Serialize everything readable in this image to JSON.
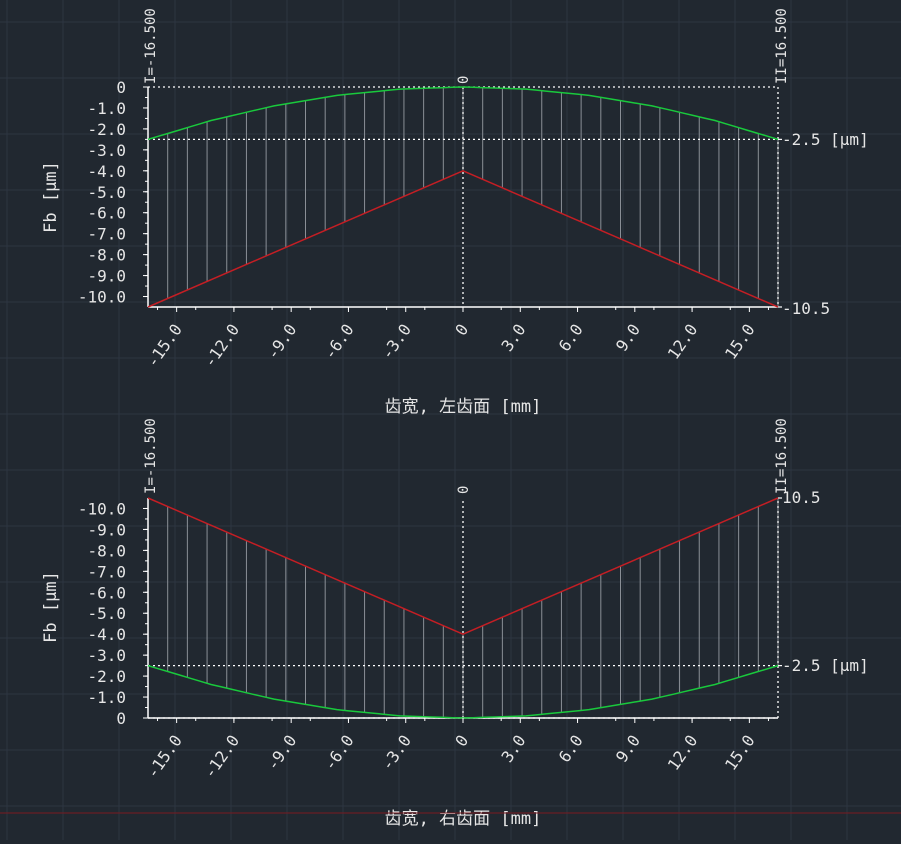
{
  "colors": {
    "background": "#212830",
    "grid": "#2d3641",
    "axis": "#ffffff",
    "hatch": "#8a8f96",
    "upper_curve": "#19c93c",
    "lower_curve": "#c41e24",
    "bottom_rule": "#7a1a1f"
  },
  "chart_data": [
    {
      "type": "line",
      "xlabel": "齿宽, 左齿面 [mm]",
      "ylabel": "Fb [μm]",
      "xlim": [
        -16.5,
        16.5
      ],
      "ylim": [
        -10.5,
        0
      ],
      "y_direction": "down-negative",
      "x_ticks": [
        "-15.0",
        "-12.0",
        "-9.0",
        "-6.0",
        "-3.0",
        "0",
        "3.0",
        "6.0",
        "9.0",
        "12.0",
        "15.0"
      ],
      "y_ticks": [
        "0",
        "-1.0",
        "-2.0",
        "-3.0",
        "-4.0",
        "-5.0",
        "-6.0",
        "-7.0",
        "-8.0",
        "-9.0",
        "-10.0"
      ],
      "markers": {
        "left": "I=-16.500",
        "center": "0",
        "right": "II=16.500"
      },
      "limit_labels": {
        "upper": "-2.5 [μm]",
        "lower": "-10.5"
      },
      "series": [
        {
          "x": [
            -16.5,
            -13.2,
            -9.9,
            -6.6,
            -3.3,
            0,
            3.3,
            6.6,
            9.9,
            13.2,
            16.5
          ],
          "values": [
            -2.5,
            -1.6,
            -0.9,
            -0.4,
            -0.1,
            0,
            -0.1,
            -0.4,
            -0.9,
            -1.6,
            -2.5
          ]
        },
        {
          "x": [
            -16.5,
            0,
            16.5
          ],
          "values": [
            -10.5,
            -4.0,
            -10.5
          ]
        }
      ]
    },
    {
      "type": "line",
      "xlabel": "齿宽, 右齿面 [mm]",
      "ylabel": "Fb [μm]",
      "xlim": [
        -16.5,
        16.5
      ],
      "ylim": [
        -10.5,
        0
      ],
      "y_direction": "up-negative",
      "x_ticks": [
        "-15.0",
        "-12.0",
        "-9.0",
        "-6.0",
        "-3.0",
        "0",
        "3.0",
        "6.0",
        "9.0",
        "12.0",
        "15.0"
      ],
      "y_ticks": [
        "0",
        "-1.0",
        "-2.0",
        "-3.0",
        "-4.0",
        "-5.0",
        "-6.0",
        "-7.0",
        "-8.0",
        "-9.0",
        "-10.0"
      ],
      "markers": {
        "left": "I=-16.500",
        "center": "0",
        "right": "II=16.500"
      },
      "limit_labels": {
        "upper": "10.5",
        "lower": "-2.5 [μm]"
      },
      "series": [
        {
          "x": [
            -16.5,
            -13.2,
            -9.9,
            -6.6,
            -3.3,
            0,
            3.3,
            6.6,
            9.9,
            13.2,
            16.5
          ],
          "values": [
            -2.5,
            -1.6,
            -0.9,
            -0.4,
            -0.1,
            0,
            -0.1,
            -0.4,
            -0.9,
            -1.6,
            -2.5
          ]
        },
        {
          "x": [
            -16.5,
            0,
            16.5
          ],
          "values": [
            -10.5,
            -4.0,
            -10.5
          ]
        }
      ]
    }
  ]
}
